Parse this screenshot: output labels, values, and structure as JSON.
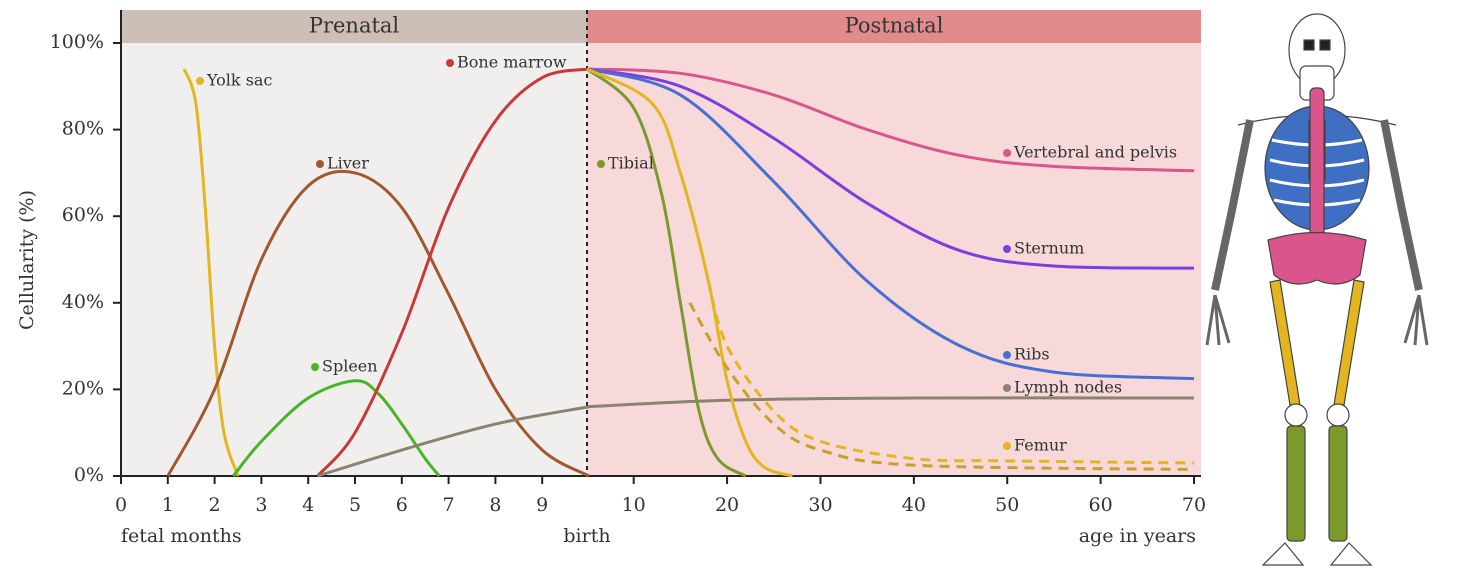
{
  "chart_data": [
    {
      "type": "line",
      "title": "Prenatal",
      "xlabel": "fetal months",
      "ylabel": "Cellularity (%)",
      "xlim": [
        0,
        10
      ],
      "xticks": [
        0,
        1,
        2,
        3,
        4,
        5,
        6,
        7,
        8,
        9
      ],
      "ylim": [
        0,
        100
      ],
      "yticks": [
        {
          "value": 0,
          "label": "0%"
        },
        {
          "value": 20,
          "label": "20%"
        },
        {
          "value": 40,
          "label": "40%"
        },
        {
          "value": 60,
          "label": "60%"
        },
        {
          "value": 80,
          "label": "80%"
        },
        {
          "value": 100,
          "label": "100%"
        }
      ],
      "series": [
        {
          "name": "Yolk sac",
          "color": "#e3b51e",
          "x": [
            1.35,
            1.6,
            1.8,
            2.0,
            2.2,
            2.5
          ],
          "values": [
            94,
            86,
            62,
            30,
            10,
            0
          ]
        },
        {
          "name": "Liver",
          "color": "#a4562f",
          "x": [
            1,
            2,
            3,
            4,
            5,
            6,
            7,
            8,
            9,
            10
          ],
          "values": [
            0,
            20,
            50,
            67,
            70,
            62,
            42,
            20,
            6,
            0
          ]
        },
        {
          "name": "Spleen",
          "color": "#47b526",
          "x": [
            2.4,
            3,
            4,
            5,
            5.5,
            6,
            6.5,
            6.8
          ],
          "values": [
            0,
            8,
            18,
            22,
            19,
            12,
            4,
            0
          ]
        },
        {
          "name": "Bone marrow",
          "color": "#c8393b",
          "x": [
            4.2,
            5,
            6,
            7,
            8,
            9,
            10
          ],
          "values": [
            0,
            10,
            33,
            62,
            82,
            92,
            94
          ]
        },
        {
          "color": "#8c8270",
          "x": [
            4.2,
            6,
            8,
            10
          ],
          "values": [
            0,
            6,
            12,
            16
          ]
        }
      ]
    },
    {
      "type": "line",
      "title": "Postnatal",
      "xlabel": "age in years",
      "annotation": "birth",
      "xlim": [
        5,
        70
      ],
      "xticks": [
        10,
        20,
        30,
        40,
        50,
        60,
        70
      ],
      "ylim": [
        0,
        100
      ],
      "series": [
        {
          "name": "Vertebral and pelvis",
          "color": "#d9558c",
          "x": [
            5,
            15,
            25,
            35,
            45,
            55,
            70
          ],
          "values": [
            94,
            93,
            88,
            80,
            74,
            71.5,
            70.5
          ]
        },
        {
          "name": "Sternum",
          "color": "#7b3fe0",
          "x": [
            5,
            15,
            25,
            35,
            45,
            55,
            70
          ],
          "values": [
            94,
            90,
            78,
            63,
            52,
            48.5,
            48
          ]
        },
        {
          "name": "Ribs",
          "color": "#4a6fd2",
          "x": [
            5,
            15,
            25,
            35,
            45,
            55,
            70
          ],
          "values": [
            94,
            88,
            68,
            45,
            30,
            24,
            22.5
          ]
        },
        {
          "name": "Lymph nodes",
          "color": "#8c8270",
          "x": [
            5,
            20,
            40,
            70
          ],
          "values": [
            16,
            17.5,
            18,
            18
          ]
        },
        {
          "name": "Tibial",
          "color": "#7c9a2c",
          "x": [
            5,
            10,
            13,
            15,
            17,
            19,
            22
          ],
          "values": [
            94,
            85,
            65,
            40,
            15,
            4,
            0
          ]
        },
        {
          "name": "Femur",
          "color": "#e3b51e",
          "x": [
            5,
            12,
            15,
            18,
            20,
            22,
            24,
            27
          ],
          "values": [
            94,
            86,
            70,
            45,
            22,
            8,
            2,
            0
          ]
        },
        {
          "color": "#e3b51e",
          "dashed": true,
          "x": [
            18,
            20,
            25,
            30,
            40,
            50,
            70
          ],
          "values": [
            45,
            30,
            15,
            8,
            4,
            3.5,
            3
          ]
        },
        {
          "color": "#c8a030",
          "dashed": true,
          "x": [
            16,
            20,
            25,
            30,
            40,
            70
          ],
          "values": [
            40,
            25,
            12,
            6,
            2.5,
            1.5
          ]
        }
      ]
    }
  ]
}
